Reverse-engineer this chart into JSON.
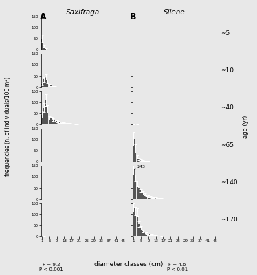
{
  "ages": [
    "~5",
    "~10",
    "~40",
    "~65",
    "~140",
    "~170"
  ],
  "title_A": "Saxifraga",
  "title_B": "Silene",
  "label_A": "A",
  "label_B": "B",
  "xlabel": "diameter classes (cm)",
  "ylabel": "frequencies (n. of individuals/100 m²)",
  "xticks": [
    1,
    5,
    9,
    13,
    17,
    21,
    25,
    29,
    33,
    37,
    41,
    45
  ],
  "ylim": [
    0,
    150
  ],
  "yticks": [
    0,
    50,
    100,
    150
  ],
  "bar_color": "#555555",
  "bg_color": "#e8e8e8",
  "stat_A": "F = 9.2\nP < 0.001",
  "stat_B": "F = 4.6\nP < 0.01",
  "annotation_140": "243",
  "saxifraga": {
    "age5": [
      50,
      15,
      5,
      2,
      1,
      0,
      0,
      0,
      0,
      0,
      0,
      0,
      0,
      0,
      0,
      0,
      0,
      0,
      0,
      0,
      0,
      0,
      0,
      0,
      0,
      0,
      0,
      0,
      0,
      0,
      0,
      0,
      0,
      0,
      0,
      0,
      0,
      0,
      0,
      0,
      0,
      0,
      0,
      0,
      0
    ],
    "age10": [
      15,
      35,
      45,
      25,
      10,
      8,
      5,
      3,
      2,
      1,
      1,
      0,
      0,
      0,
      0,
      0,
      0,
      0,
      0,
      0,
      0,
      0,
      0,
      0,
      0,
      0,
      0,
      0,
      0,
      0,
      0,
      0,
      0,
      0,
      0,
      0,
      0,
      0,
      0,
      0,
      0,
      0,
      0,
      0,
      0
    ],
    "age40": [
      45,
      75,
      110,
      70,
      30,
      28,
      22,
      18,
      15,
      12,
      10,
      8,
      7,
      5,
      4,
      4,
      3,
      3,
      2,
      2,
      1,
      1,
      1,
      1,
      1,
      1,
      1,
      1,
      1,
      0,
      1,
      0,
      0,
      0,
      0,
      0,
      0,
      0,
      0,
      0,
      0,
      0,
      0,
      0,
      0
    ],
    "age65": [
      1,
      1,
      1,
      0,
      0,
      0,
      0,
      0,
      0,
      0,
      0,
      0,
      0,
      0,
      0,
      0,
      0,
      0,
      0,
      0,
      0,
      0,
      0,
      0,
      0,
      0,
      0,
      0,
      0,
      0,
      0,
      0,
      0,
      0,
      0,
      0,
      0,
      0,
      0,
      0,
      0,
      0,
      0,
      0,
      0
    ],
    "age140": [
      1,
      1,
      0,
      0,
      0,
      0,
      0,
      0,
      0,
      0,
      0,
      0,
      0,
      0,
      0,
      0,
      0,
      0,
      0,
      0,
      0,
      0,
      0,
      0,
      0,
      0,
      0,
      0,
      0,
      0,
      0,
      0,
      0,
      0,
      0,
      0,
      0,
      0,
      0,
      0,
      0,
      0,
      0,
      0,
      0
    ],
    "age170": [
      1,
      2,
      1,
      1,
      0,
      0,
      0,
      0,
      0,
      0,
      0,
      0,
      0,
      0,
      0,
      0,
      0,
      0,
      0,
      0,
      0,
      0,
      0,
      0,
      0,
      0,
      0,
      0,
      0,
      0,
      0,
      0,
      0,
      0,
      0,
      0,
      0,
      0,
      0,
      0,
      0,
      0,
      0,
      0,
      0
    ]
  },
  "silene": {
    "age5": [
      0,
      0,
      0,
      0,
      0,
      0,
      0,
      0,
      0,
      0,
      0,
      0,
      0,
      0,
      0,
      0,
      0,
      0,
      0,
      0,
      0,
      0,
      0,
      0,
      0,
      0,
      0,
      0,
      0,
      0,
      0,
      0,
      0,
      0,
      0,
      0,
      0,
      0,
      0,
      0,
      0,
      0,
      0,
      0,
      0
    ],
    "age10": [
      1,
      1,
      0,
      0,
      0,
      0,
      0,
      0,
      0,
      0,
      0,
      0,
      0,
      0,
      0,
      0,
      0,
      0,
      0,
      0,
      0,
      0,
      0,
      0,
      0,
      0,
      0,
      0,
      0,
      0,
      0,
      0,
      0,
      0,
      0,
      0,
      0,
      0,
      0,
      0,
      0,
      0,
      0,
      0,
      0
    ],
    "age40": [
      2,
      3,
      2,
      3,
      1,
      1,
      1,
      0,
      0,
      0,
      0,
      0,
      0,
      0,
      0,
      0,
      0,
      0,
      0,
      0,
      0,
      0,
      0,
      0,
      0,
      0,
      0,
      0,
      0,
      0,
      0,
      0,
      0,
      0,
      0,
      0,
      0,
      0,
      0,
      0,
      0,
      0,
      0,
      0,
      0
    ],
    "age65": [
      103,
      60,
      22,
      12,
      8,
      5,
      4,
      3,
      2,
      2,
      1,
      1,
      1,
      1,
      0,
      1,
      0,
      0,
      0,
      0,
      0,
      0,
      0,
      0,
      0,
      0,
      0,
      0,
      0,
      0,
      0,
      0,
      0,
      0,
      0,
      0,
      0,
      0,
      0,
      0,
      0,
      0,
      0,
      0,
      0
    ],
    "age140": [
      130,
      95,
      70,
      52,
      38,
      28,
      22,
      17,
      13,
      10,
      8,
      6,
      5,
      4,
      3,
      3,
      2,
      2,
      2,
      1,
      1,
      1,
      1,
      1,
      0,
      1,
      0,
      0,
      0,
      0,
      0,
      0,
      0,
      0,
      0,
      0,
      0,
      0,
      0,
      0,
      0,
      0,
      0,
      0,
      0
    ],
    "age170": [
      130,
      115,
      110,
      55,
      38,
      25,
      18,
      14,
      10,
      8,
      6,
      5,
      4,
      3,
      3,
      2,
      2,
      2,
      1,
      1,
      1,
      1,
      0,
      0,
      0,
      0,
      0,
      0,
      0,
      0,
      0,
      0,
      0,
      0,
      0,
      0,
      0,
      0,
      0,
      0,
      0,
      0,
      0,
      0,
      0
    ]
  },
  "saxifraga_err": {
    "age5": [
      15,
      5,
      2,
      1,
      0,
      0,
      0,
      0,
      0,
      0,
      0,
      0,
      0,
      0,
      0,
      0,
      0,
      0,
      0,
      0,
      0,
      0,
      0,
      0,
      0,
      0,
      0,
      0,
      0,
      0,
      0,
      0,
      0,
      0,
      0,
      0,
      0,
      0,
      0,
      0,
      0,
      0,
      0,
      0,
      0
    ],
    "age10": [
      5,
      10,
      12,
      8,
      4,
      3,
      2,
      1,
      1,
      0,
      0,
      0,
      0,
      0,
      0,
      0,
      0,
      0,
      0,
      0,
      0,
      0,
      0,
      0,
      0,
      0,
      0,
      0,
      0,
      0,
      0,
      0,
      0,
      0,
      0,
      0,
      0,
      0,
      0,
      0,
      0,
      0,
      0,
      0,
      0
    ],
    "age40": [
      15,
      20,
      25,
      18,
      8,
      7,
      6,
      5,
      4,
      4,
      3,
      3,
      2,
      2,
      1,
      1,
      1,
      1,
      1,
      1,
      0,
      0,
      0,
      0,
      0,
      0,
      0,
      0,
      0,
      0,
      0,
      0,
      0,
      0,
      0,
      0,
      0,
      0,
      0,
      0,
      0,
      0,
      0,
      0,
      0
    ],
    "age65": [
      1,
      0,
      0,
      0,
      0,
      0,
      0,
      0,
      0,
      0,
      0,
      0,
      0,
      0,
      0,
      0,
      0,
      0,
      0,
      0,
      0,
      0,
      0,
      0,
      0,
      0,
      0,
      0,
      0,
      0,
      0,
      0,
      0,
      0,
      0,
      0,
      0,
      0,
      0,
      0,
      0,
      0,
      0,
      0,
      0
    ],
    "age140": [
      0,
      0,
      0,
      0,
      0,
      0,
      0,
      0,
      0,
      0,
      0,
      0,
      0,
      0,
      0,
      0,
      0,
      0,
      0,
      0,
      0,
      0,
      0,
      0,
      0,
      0,
      0,
      0,
      0,
      0,
      0,
      0,
      0,
      0,
      0,
      0,
      0,
      0,
      0,
      0,
      0,
      0,
      0,
      0,
      0
    ],
    "age170": [
      0,
      1,
      0,
      0,
      0,
      0,
      0,
      0,
      0,
      0,
      0,
      0,
      0,
      0,
      0,
      0,
      0,
      0,
      0,
      0,
      0,
      0,
      0,
      0,
      0,
      0,
      0,
      0,
      0,
      0,
      0,
      0,
      0,
      0,
      0,
      0,
      0,
      0,
      0,
      0,
      0,
      0,
      0,
      0,
      0
    ]
  },
  "silene_err": {
    "age5": [
      0,
      0,
      0,
      0,
      0,
      0,
      0,
      0,
      0,
      0,
      0,
      0,
      0,
      0,
      0,
      0,
      0,
      0,
      0,
      0,
      0,
      0,
      0,
      0,
      0,
      0,
      0,
      0,
      0,
      0,
      0,
      0,
      0,
      0,
      0,
      0,
      0,
      0,
      0,
      0,
      0,
      0,
      0,
      0,
      0
    ],
    "age10": [
      0,
      0,
      0,
      0,
      0,
      0,
      0,
      0,
      0,
      0,
      0,
      0,
      0,
      0,
      0,
      0,
      0,
      0,
      0,
      0,
      0,
      0,
      0,
      0,
      0,
      0,
      0,
      0,
      0,
      0,
      0,
      0,
      0,
      0,
      0,
      0,
      0,
      0,
      0,
      0,
      0,
      0,
      0,
      0,
      0
    ],
    "age40": [
      1,
      1,
      1,
      1,
      0,
      0,
      0,
      0,
      0,
      0,
      0,
      0,
      0,
      0,
      0,
      0,
      0,
      0,
      0,
      0,
      0,
      0,
      0,
      0,
      0,
      0,
      0,
      0,
      0,
      0,
      0,
      0,
      0,
      0,
      0,
      0,
      0,
      0,
      0,
      0,
      0,
      0,
      0,
      0,
      0
    ],
    "age65": [
      30,
      18,
      7,
      4,
      3,
      2,
      1,
      1,
      1,
      0,
      0,
      0,
      0,
      0,
      0,
      0,
      0,
      0,
      0,
      0,
      0,
      0,
      0,
      0,
      0,
      0,
      0,
      0,
      0,
      0,
      0,
      0,
      0,
      0,
      0,
      0,
      0,
      0,
      0,
      0,
      0,
      0,
      0,
      0,
      0
    ],
    "age140": [
      20,
      15,
      12,
      10,
      8,
      7,
      5,
      4,
      4,
      3,
      3,
      2,
      2,
      1,
      1,
      1,
      1,
      1,
      0,
      0,
      0,
      0,
      0,
      0,
      0,
      0,
      0,
      0,
      0,
      0,
      0,
      0,
      0,
      0,
      0,
      0,
      0,
      0,
      0,
      0,
      0,
      0,
      0,
      0,
      0
    ],
    "age170": [
      20,
      18,
      16,
      12,
      8,
      7,
      5,
      4,
      3,
      3,
      2,
      2,
      1,
      1,
      1,
      1,
      0,
      0,
      0,
      0,
      0,
      0,
      0,
      0,
      0,
      0,
      0,
      0,
      0,
      0,
      0,
      0,
      0,
      0,
      0,
      0,
      0,
      0,
      0,
      0,
      0,
      0,
      0,
      0,
      0
    ]
  }
}
